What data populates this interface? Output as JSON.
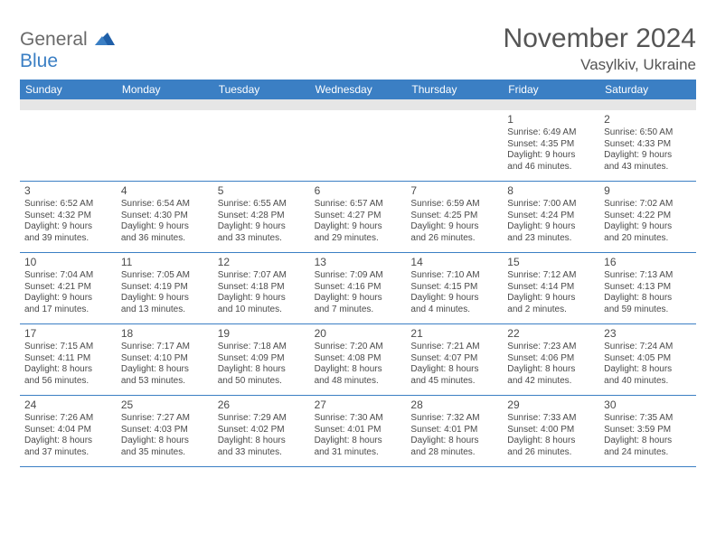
{
  "brand": {
    "top": "General",
    "bottom": "Blue"
  },
  "title": "November 2024",
  "subtitle": "Vasylkiv, Ukraine",
  "colors": {
    "accent": "#3b7fc4",
    "band": "#e6e6e6",
    "text": "#4a4a4a",
    "title_text": "#555555"
  },
  "day_headers": [
    "Sunday",
    "Monday",
    "Tuesday",
    "Wednesday",
    "Thursday",
    "Friday",
    "Saturday"
  ],
  "weeks": [
    [
      null,
      null,
      null,
      null,
      null,
      {
        "n": "1",
        "rise": "Sunrise: 6:49 AM",
        "set": "Sunset: 4:35 PM",
        "day1": "Daylight: 9 hours",
        "day2": "and 46 minutes."
      },
      {
        "n": "2",
        "rise": "Sunrise: 6:50 AM",
        "set": "Sunset: 4:33 PM",
        "day1": "Daylight: 9 hours",
        "day2": "and 43 minutes."
      }
    ],
    [
      {
        "n": "3",
        "rise": "Sunrise: 6:52 AM",
        "set": "Sunset: 4:32 PM",
        "day1": "Daylight: 9 hours",
        "day2": "and 39 minutes."
      },
      {
        "n": "4",
        "rise": "Sunrise: 6:54 AM",
        "set": "Sunset: 4:30 PM",
        "day1": "Daylight: 9 hours",
        "day2": "and 36 minutes."
      },
      {
        "n": "5",
        "rise": "Sunrise: 6:55 AM",
        "set": "Sunset: 4:28 PM",
        "day1": "Daylight: 9 hours",
        "day2": "and 33 minutes."
      },
      {
        "n": "6",
        "rise": "Sunrise: 6:57 AM",
        "set": "Sunset: 4:27 PM",
        "day1": "Daylight: 9 hours",
        "day2": "and 29 minutes."
      },
      {
        "n": "7",
        "rise": "Sunrise: 6:59 AM",
        "set": "Sunset: 4:25 PM",
        "day1": "Daylight: 9 hours",
        "day2": "and 26 minutes."
      },
      {
        "n": "8",
        "rise": "Sunrise: 7:00 AM",
        "set": "Sunset: 4:24 PM",
        "day1": "Daylight: 9 hours",
        "day2": "and 23 minutes."
      },
      {
        "n": "9",
        "rise": "Sunrise: 7:02 AM",
        "set": "Sunset: 4:22 PM",
        "day1": "Daylight: 9 hours",
        "day2": "and 20 minutes."
      }
    ],
    [
      {
        "n": "10",
        "rise": "Sunrise: 7:04 AM",
        "set": "Sunset: 4:21 PM",
        "day1": "Daylight: 9 hours",
        "day2": "and 17 minutes."
      },
      {
        "n": "11",
        "rise": "Sunrise: 7:05 AM",
        "set": "Sunset: 4:19 PM",
        "day1": "Daylight: 9 hours",
        "day2": "and 13 minutes."
      },
      {
        "n": "12",
        "rise": "Sunrise: 7:07 AM",
        "set": "Sunset: 4:18 PM",
        "day1": "Daylight: 9 hours",
        "day2": "and 10 minutes."
      },
      {
        "n": "13",
        "rise": "Sunrise: 7:09 AM",
        "set": "Sunset: 4:16 PM",
        "day1": "Daylight: 9 hours",
        "day2": "and 7 minutes."
      },
      {
        "n": "14",
        "rise": "Sunrise: 7:10 AM",
        "set": "Sunset: 4:15 PM",
        "day1": "Daylight: 9 hours",
        "day2": "and 4 minutes."
      },
      {
        "n": "15",
        "rise": "Sunrise: 7:12 AM",
        "set": "Sunset: 4:14 PM",
        "day1": "Daylight: 9 hours",
        "day2": "and 2 minutes."
      },
      {
        "n": "16",
        "rise": "Sunrise: 7:13 AM",
        "set": "Sunset: 4:13 PM",
        "day1": "Daylight: 8 hours",
        "day2": "and 59 minutes."
      }
    ],
    [
      {
        "n": "17",
        "rise": "Sunrise: 7:15 AM",
        "set": "Sunset: 4:11 PM",
        "day1": "Daylight: 8 hours",
        "day2": "and 56 minutes."
      },
      {
        "n": "18",
        "rise": "Sunrise: 7:17 AM",
        "set": "Sunset: 4:10 PM",
        "day1": "Daylight: 8 hours",
        "day2": "and 53 minutes."
      },
      {
        "n": "19",
        "rise": "Sunrise: 7:18 AM",
        "set": "Sunset: 4:09 PM",
        "day1": "Daylight: 8 hours",
        "day2": "and 50 minutes."
      },
      {
        "n": "20",
        "rise": "Sunrise: 7:20 AM",
        "set": "Sunset: 4:08 PM",
        "day1": "Daylight: 8 hours",
        "day2": "and 48 minutes."
      },
      {
        "n": "21",
        "rise": "Sunrise: 7:21 AM",
        "set": "Sunset: 4:07 PM",
        "day1": "Daylight: 8 hours",
        "day2": "and 45 minutes."
      },
      {
        "n": "22",
        "rise": "Sunrise: 7:23 AM",
        "set": "Sunset: 4:06 PM",
        "day1": "Daylight: 8 hours",
        "day2": "and 42 minutes."
      },
      {
        "n": "23",
        "rise": "Sunrise: 7:24 AM",
        "set": "Sunset: 4:05 PM",
        "day1": "Daylight: 8 hours",
        "day2": "and 40 minutes."
      }
    ],
    [
      {
        "n": "24",
        "rise": "Sunrise: 7:26 AM",
        "set": "Sunset: 4:04 PM",
        "day1": "Daylight: 8 hours",
        "day2": "and 37 minutes."
      },
      {
        "n": "25",
        "rise": "Sunrise: 7:27 AM",
        "set": "Sunset: 4:03 PM",
        "day1": "Daylight: 8 hours",
        "day2": "and 35 minutes."
      },
      {
        "n": "26",
        "rise": "Sunrise: 7:29 AM",
        "set": "Sunset: 4:02 PM",
        "day1": "Daylight: 8 hours",
        "day2": "and 33 minutes."
      },
      {
        "n": "27",
        "rise": "Sunrise: 7:30 AM",
        "set": "Sunset: 4:01 PM",
        "day1": "Daylight: 8 hours",
        "day2": "and 31 minutes."
      },
      {
        "n": "28",
        "rise": "Sunrise: 7:32 AM",
        "set": "Sunset: 4:01 PM",
        "day1": "Daylight: 8 hours",
        "day2": "and 28 minutes."
      },
      {
        "n": "29",
        "rise": "Sunrise: 7:33 AM",
        "set": "Sunset: 4:00 PM",
        "day1": "Daylight: 8 hours",
        "day2": "and 26 minutes."
      },
      {
        "n": "30",
        "rise": "Sunrise: 7:35 AM",
        "set": "Sunset: 3:59 PM",
        "day1": "Daylight: 8 hours",
        "day2": "and 24 minutes."
      }
    ]
  ]
}
